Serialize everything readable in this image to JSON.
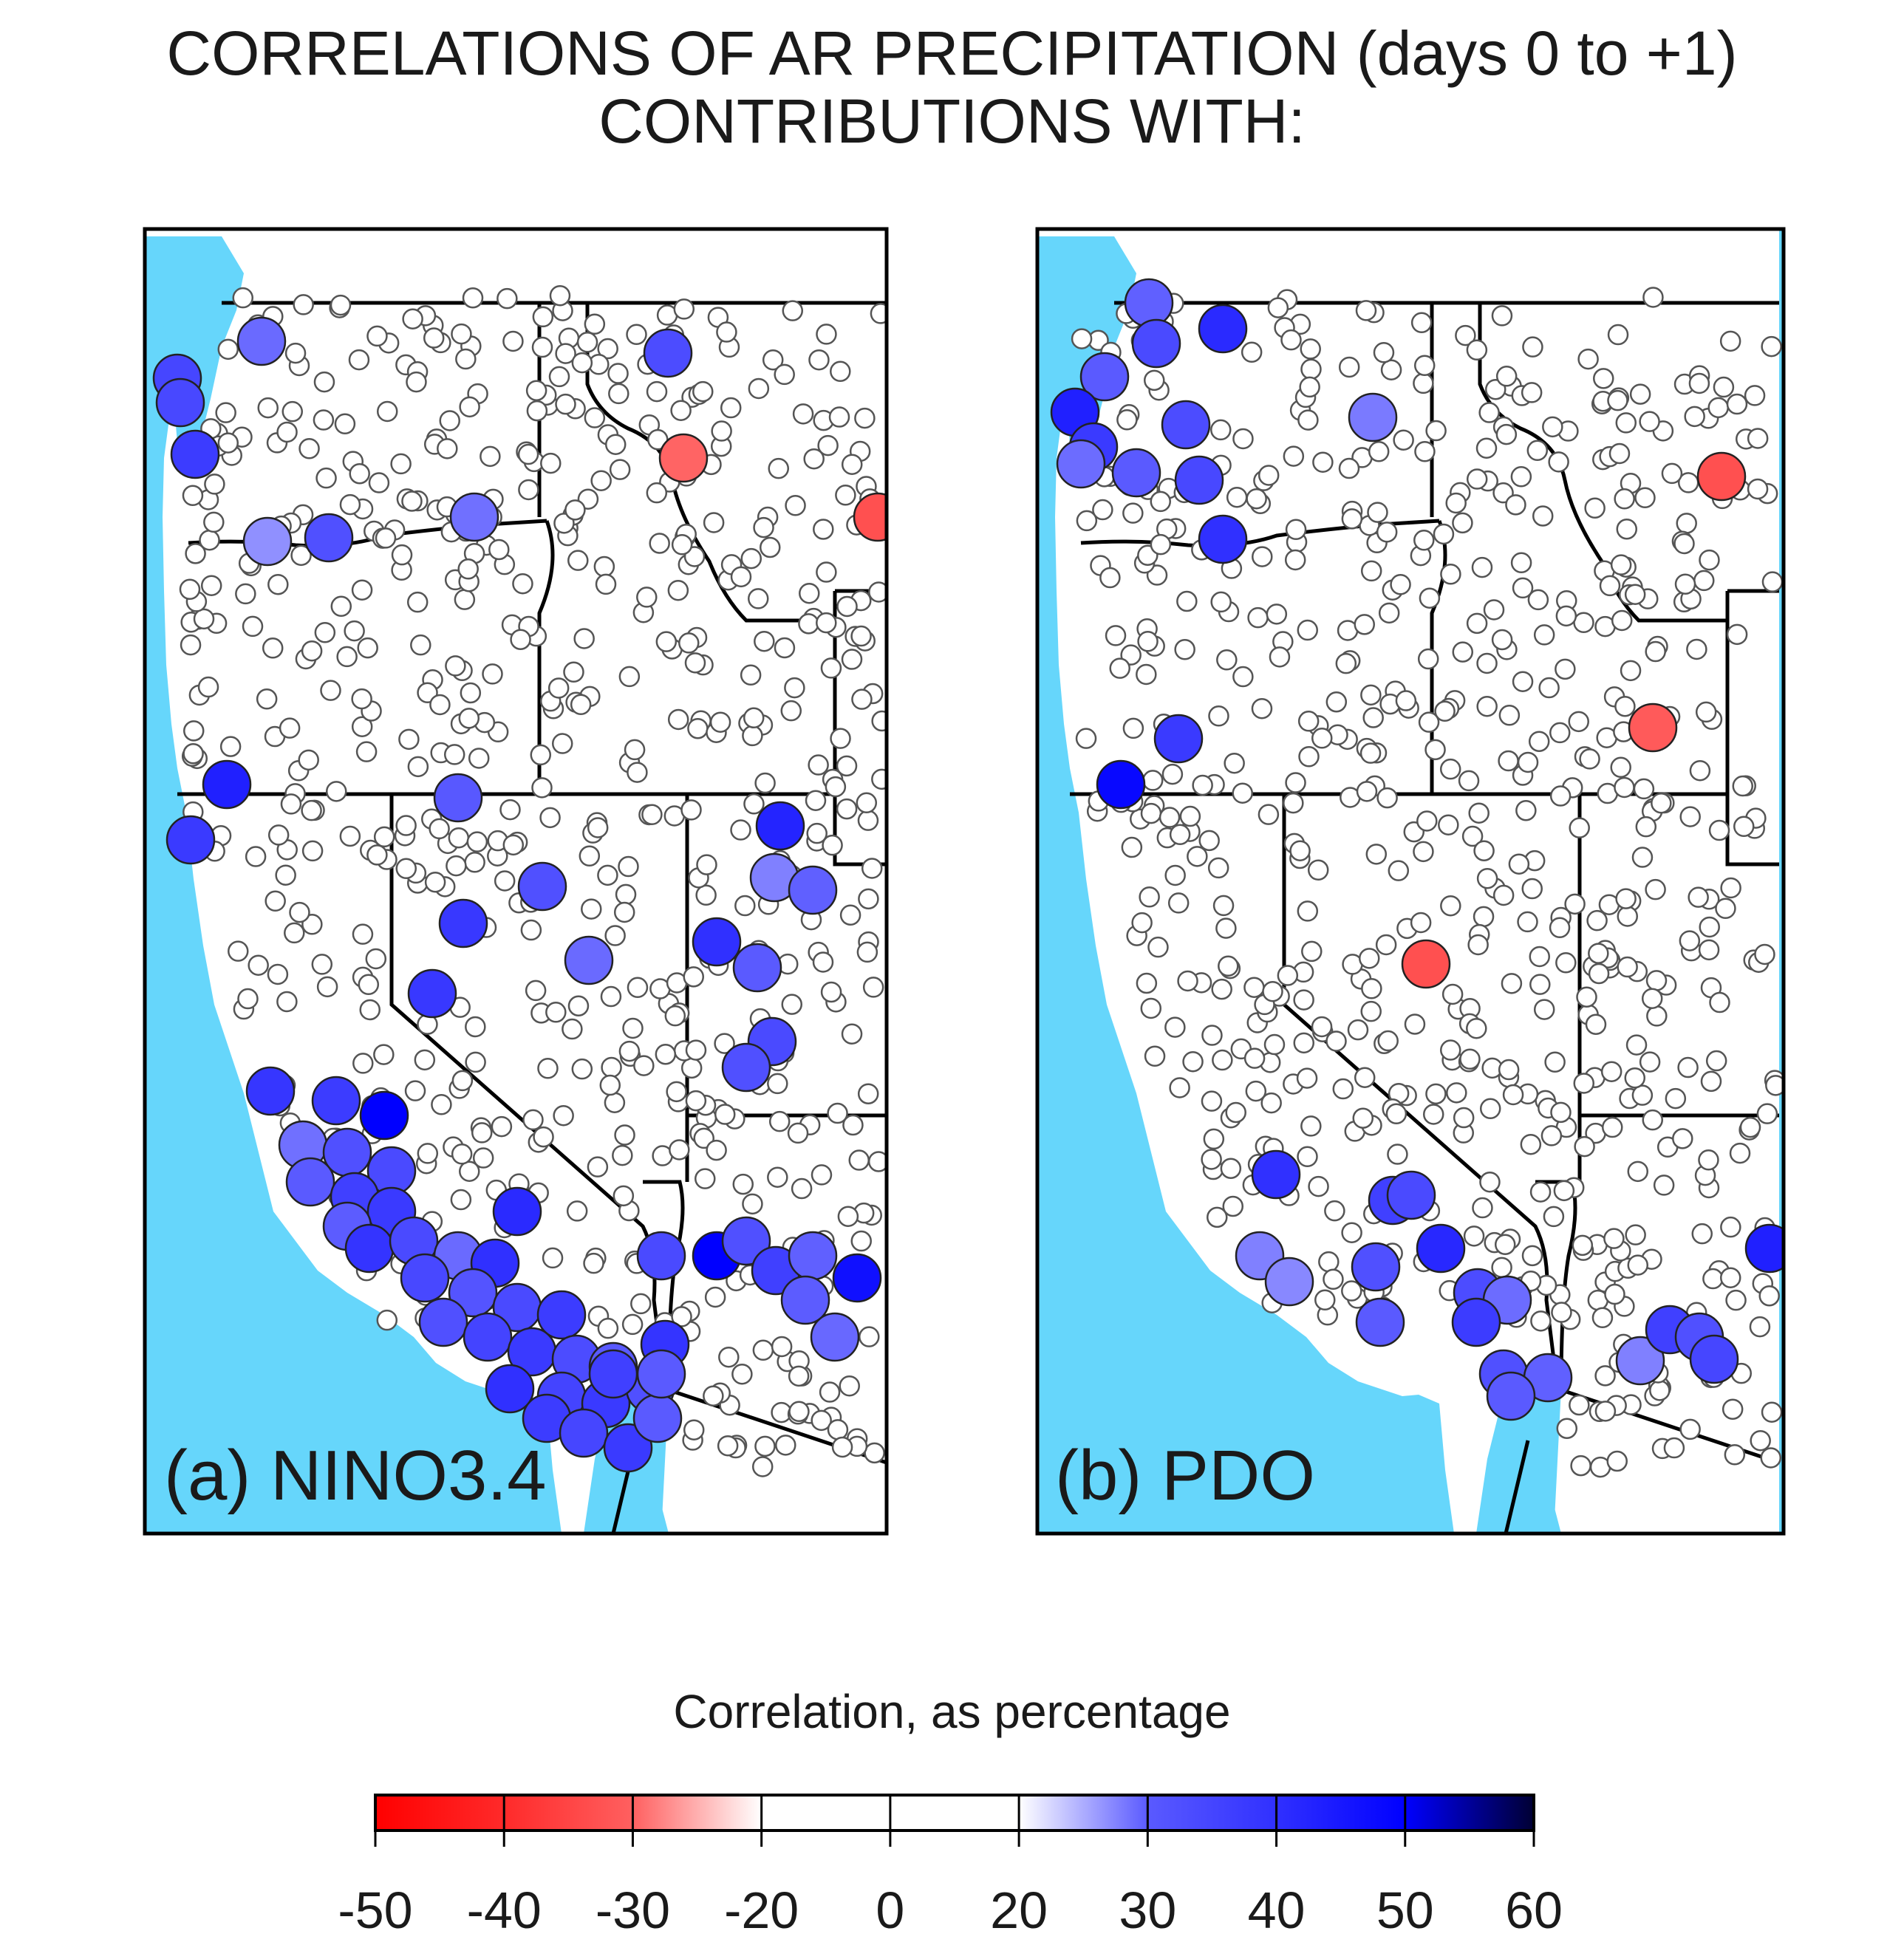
{
  "title": {
    "line1": "CORRELATIONS OF AR PRECIPITATION (days 0 to +1)",
    "line2": "CONTRIBUTIONS WITH:"
  },
  "colors": {
    "ocean": "#66d6fb",
    "land": "#ffffff",
    "border": "#000000",
    "neutral_station": "#ffffff",
    "negative": "#f25a5a"
  },
  "panels": [
    {
      "id": "a",
      "label": "(a) NINO3.4"
    },
    {
      "id": "b",
      "label": "(b) PDO"
    }
  ],
  "colorbar": {
    "label": "Correlation, as percentage",
    "ticks": [
      "-50",
      "-40",
      "-30",
      "-20",
      "0",
      "20",
      "30",
      "40",
      "50",
      "60"
    ],
    "segments": [
      {
        "from": -50,
        "to": -40,
        "c1": "#ff0000",
        "c2": "#ff2a2a"
      },
      {
        "from": -40,
        "to": -30,
        "c1": "#ff2a2a",
        "c2": "#ff6060"
      },
      {
        "from": -30,
        "to": -20,
        "c1": "#ff6060",
        "c2": "#ffffff"
      },
      {
        "from": -20,
        "to": 20,
        "c1": "#ffffff",
        "c2": "#ffffff"
      },
      {
        "from": 20,
        "to": 30,
        "c1": "#ffffff",
        "c2": "#5a5aff"
      },
      {
        "from": 30,
        "to": 40,
        "c1": "#5a5aff",
        "c2": "#3030ff"
      },
      {
        "from": 40,
        "to": 50,
        "c1": "#3030ff",
        "c2": "#0000ff"
      },
      {
        "from": 50,
        "to": 60,
        "c1": "#0000ff",
        "c2": "#000033"
      }
    ]
  }
}
